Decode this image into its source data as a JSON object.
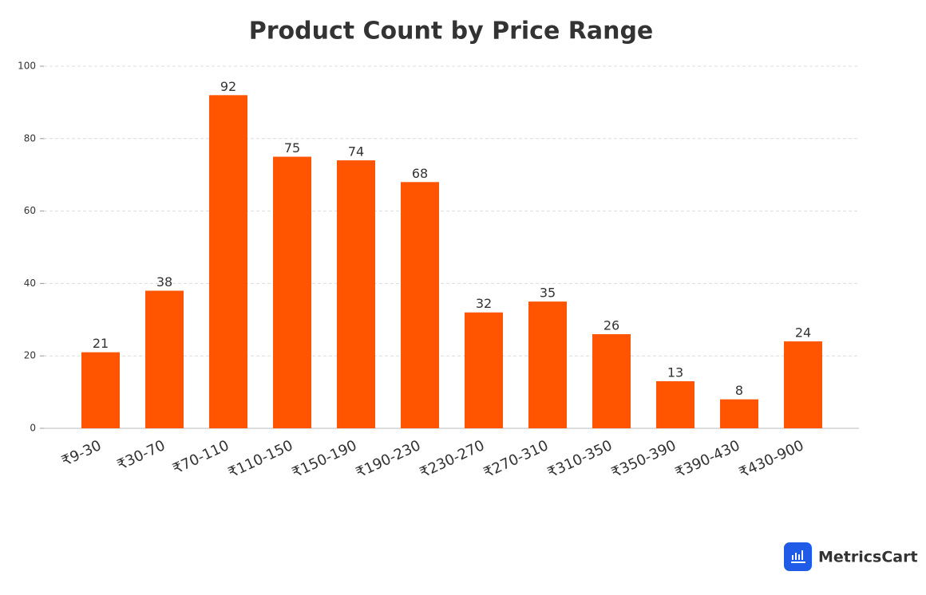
{
  "chart_data": {
    "type": "bar",
    "title": "Product Count by Price Range",
    "categories": [
      "₹9-30",
      "₹30-70",
      "₹70-110",
      "₹110-150",
      "₹150-190",
      "₹190-230",
      "₹230-270",
      "₹270-310",
      "₹310-350",
      "₹350-390",
      "₹390-430",
      "₹430-900"
    ],
    "values": [
      21,
      38,
      92,
      75,
      74,
      68,
      32,
      35,
      26,
      13,
      8,
      24
    ],
    "color": "#ff5400",
    "ylim": [
      0,
      100
    ],
    "yticks": [
      0,
      20,
      40,
      60,
      80,
      100
    ],
    "grid": true
  },
  "logo": {
    "text": "MetricsCart"
  }
}
